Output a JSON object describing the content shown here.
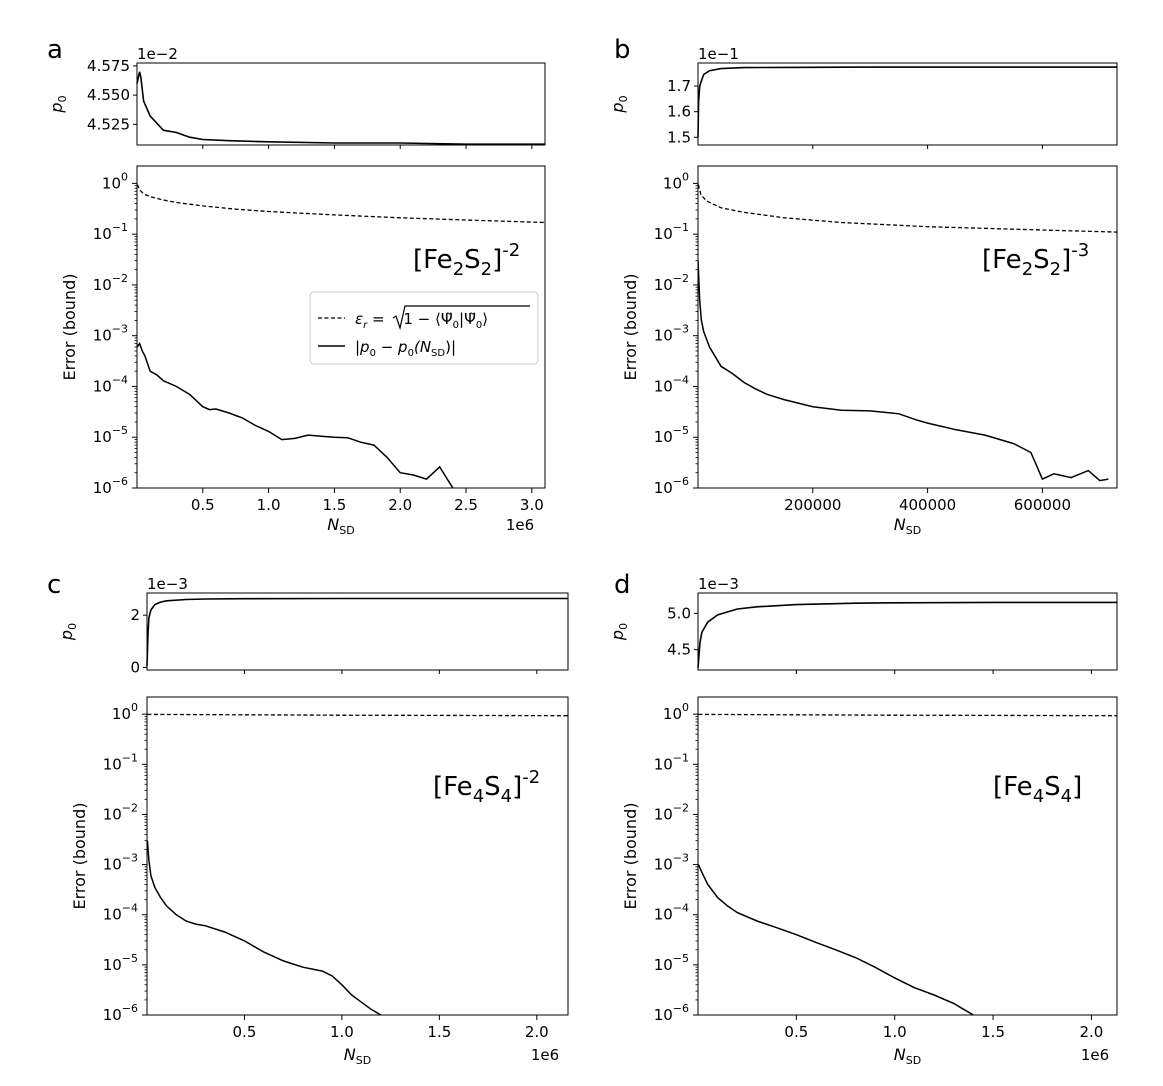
{
  "figure": {
    "panels": [
      {
        "letter": "a",
        "molecule": [
          "[Fe",
          "2",
          "S",
          "2",
          "]",
          "-2"
        ]
      },
      {
        "letter": "b",
        "molecule": [
          "[Fe",
          "2",
          "S",
          "2",
          "]",
          "-3"
        ]
      },
      {
        "letter": "c",
        "molecule": [
          "[Fe",
          "4",
          "S",
          "4",
          "]",
          "-2"
        ]
      },
      {
        "letter": "d",
        "molecule": [
          "[Fe",
          "4",
          "S",
          "4",
          "]",
          ""
        ]
      }
    ],
    "legend": {
      "dashed_label_parts": [
        "ε",
        "r",
        " = ",
        "1 − ⟨Ψ̃",
        "0",
        "|Ψ̃",
        "0",
        "⟩"
      ],
      "solid_label_parts": [
        "|p",
        "0",
        " − p",
        "0",
        "(N",
        "SD",
        ")|"
      ]
    }
  },
  "chart_data": [
    {
      "panel": "a",
      "type": "line",
      "top": {
        "ylabel": "p0",
        "offset_text": "1e−2",
        "yticks": [
          "4.525",
          "4.550",
          "4.575"
        ],
        "ytick_values": [
          4.525,
          4.55,
          4.575
        ],
        "ylim": [
          4.5073,
          4.5775
        ],
        "x": [
          0,
          0.02,
          0.03,
          0.05,
          0.1,
          0.2,
          0.3,
          0.4,
          0.5,
          0.7,
          1.0,
          1.5,
          2.0,
          2.5,
          3.1
        ],
        "values": [
          4.56,
          4.57,
          4.565,
          4.545,
          4.532,
          4.52,
          4.518,
          4.514,
          4.512,
          4.511,
          4.51,
          4.509,
          4.509,
          4.508,
          4.508
        ]
      },
      "bottom": {
        "ylabel": "Error (bound)",
        "xlabel": "N_SD",
        "x_offset_text": "1e6",
        "xticks": [
          "0.5",
          "1.0",
          "1.5",
          "2.0",
          "2.5",
          "3.0"
        ],
        "xtick_values": [
          0.5,
          1.0,
          1.5,
          2.0,
          2.5,
          3.0
        ],
        "xlim": [
          0,
          3.1
        ],
        "yscale": "log",
        "ylim": [
          1e-06,
          2.2
        ],
        "ytick_exponents": [
          0,
          -1,
          -2,
          -3,
          -4,
          -5,
          -6
        ],
        "series": [
          {
            "style": "dashed",
            "x": [
              0.002,
              0.02,
              0.05,
              0.1,
              0.2,
              0.3,
              0.5,
              0.75,
              1.0,
              1.5,
              2.0,
              2.5,
              3.1
            ],
            "values": [
              0.95,
              0.75,
              0.62,
              0.55,
              0.47,
              0.42,
              0.36,
              0.31,
              0.28,
              0.24,
              0.21,
              0.19,
              0.17
            ]
          },
          {
            "style": "solid",
            "x": [
              0.0,
              0.02,
              0.04,
              0.06,
              0.1,
              0.15,
              0.2,
              0.3,
              0.4,
              0.5,
              0.55,
              0.6,
              0.7,
              0.8,
              0.9,
              1.0,
              1.1,
              1.2,
              1.3,
              1.4,
              1.5,
              1.6,
              1.7,
              1.8,
              1.9,
              2.0,
              2.1,
              2.2,
              2.3,
              2.35,
              2.4
            ],
            "values": [
              0.0006,
              0.0007,
              0.0005,
              0.0004,
              0.0002,
              0.00017,
              0.00013,
              0.0001,
              7e-05,
              4e-05,
              3.5e-05,
              3.6e-05,
              3e-05,
              2.4e-05,
              1.7e-05,
              1.3e-05,
              9e-06,
              9.5e-06,
              1.1e-05,
              1.05e-05,
              1e-05,
              9.8e-06,
              8e-06,
              7e-06,
              4e-06,
              2e-06,
              1.8e-06,
              1.5e-06,
              2.6e-06,
              1.6e-06,
              1e-06
            ]
          }
        ]
      }
    },
    {
      "panel": "b",
      "type": "line",
      "top": {
        "ylabel": "p0",
        "offset_text": "1e−1",
        "yticks": [
          "1.5",
          "1.6",
          "1.7"
        ],
        "ytick_values": [
          1.5,
          1.6,
          1.7
        ],
        "ylim": [
          1.47,
          1.79
        ],
        "x": [
          0,
          1000,
          3000,
          6000,
          10000,
          20000,
          40000,
          80000,
          150000,
          300000,
          500000,
          730000
        ],
        "values": [
          1.5,
          1.64,
          1.7,
          1.72,
          1.745,
          1.76,
          1.768,
          1.772,
          1.773,
          1.774,
          1.774,
          1.774
        ]
      },
      "bottom": {
        "ylabel": "Error (bound)",
        "xlabel": "N_SD",
        "x_offset_text": "",
        "xticks": [
          "200000",
          "400000",
          "600000"
        ],
        "xtick_values": [
          200000,
          400000,
          600000
        ],
        "xlim": [
          0,
          730000
        ],
        "yscale": "log",
        "ylim": [
          1e-06,
          2.2
        ],
        "ytick_exponents": [
          0,
          -1,
          -2,
          -3,
          -4,
          -5,
          -6
        ],
        "series": [
          {
            "style": "dashed",
            "x": [
              500,
              5000,
              15000,
              40000,
              80000,
              150000,
              250000,
              400000,
              550000,
              730000
            ],
            "values": [
              0.95,
              0.6,
              0.45,
              0.33,
              0.27,
              0.21,
              0.17,
              0.14,
              0.125,
              0.11
            ]
          },
          {
            "style": "solid",
            "x": [
              0,
              3000,
              6000,
              10000,
              20000,
              40000,
              60000,
              80000,
              100000,
              120000,
              150000,
              200000,
              250000,
              300000,
              350000,
              380000,
              400000,
              450000,
              500000,
              550000,
              580000,
              600000,
              620000,
              650000,
              680000,
              700000,
              715000
            ],
            "values": [
              0.03,
              0.005,
              0.002,
              0.0012,
              0.0006,
              0.00025,
              0.00018,
              0.00012,
              9e-05,
              7e-05,
              5.5e-05,
              4e-05,
              3.4e-05,
              3.3e-05,
              2.9e-05,
              2.2e-05,
              1.9e-05,
              1.4e-05,
              1.1e-05,
              7.5e-06,
              5e-06,
              1.5e-06,
              1.9e-06,
              1.6e-06,
              2.2e-06,
              1.4e-06,
              1.5e-06
            ]
          }
        ]
      }
    },
    {
      "panel": "c",
      "type": "line",
      "top": {
        "ylabel": "p0",
        "offset_text": "1e−3",
        "yticks": [
          "0",
          "2"
        ],
        "ytick_values": [
          0,
          2
        ],
        "ylim": [
          -0.1,
          2.85
        ],
        "x": [
          0,
          0.005,
          0.01,
          0.02,
          0.04,
          0.07,
          0.1,
          0.2,
          0.3,
          0.5,
          1.0,
          1.5,
          2.16
        ],
        "values": [
          0.05,
          1.3,
          1.9,
          2.2,
          2.4,
          2.5,
          2.55,
          2.6,
          2.62,
          2.63,
          2.64,
          2.64,
          2.64
        ]
      },
      "bottom": {
        "ylabel": "Error (bound)",
        "xlabel": "N_SD",
        "x_offset_text": "1e6",
        "xticks": [
          "0.5",
          "1.0",
          "1.5",
          "2.0"
        ],
        "xtick_values": [
          0.5,
          1.0,
          1.5,
          2.0
        ],
        "xlim": [
          0,
          2.16
        ],
        "yscale": "log",
        "ylim": [
          1e-06,
          2.2
        ],
        "ytick_exponents": [
          0,
          -1,
          -2,
          -3,
          -4,
          -5,
          -6
        ],
        "series": [
          {
            "style": "dashed",
            "x": [
              0.002,
              0.5,
              1.0,
              1.5,
              2.16
            ],
            "values": [
              0.99,
              0.97,
              0.955,
              0.945,
              0.93
            ]
          },
          {
            "style": "solid",
            "x": [
              0.002,
              0.01,
              0.02,
              0.04,
              0.07,
              0.1,
              0.15,
              0.2,
              0.25,
              0.3,
              0.4,
              0.5,
              0.6,
              0.7,
              0.8,
              0.9,
              0.95,
              1.0,
              1.05,
              1.1,
              1.15,
              1.2
            ],
            "values": [
              0.003,
              0.0012,
              0.0006,
              0.00035,
              0.00022,
              0.00015,
              0.0001,
              7.5e-05,
              6.5e-05,
              6e-05,
              4.5e-05,
              3e-05,
              1.8e-05,
              1.2e-05,
              9e-06,
              7.5e-06,
              6e-06,
              4e-06,
              2.5e-06,
              1.8e-06,
              1.3e-06,
              1e-06
            ]
          }
        ]
      }
    },
    {
      "panel": "d",
      "type": "line",
      "top": {
        "ylabel": "p0",
        "offset_text": "1e−3",
        "yticks": [
          "4.5",
          "5.0"
        ],
        "ytick_values": [
          4.5,
          5.0
        ],
        "ylim": [
          4.22,
          5.28
        ],
        "x": [
          0,
          0.01,
          0.02,
          0.05,
          0.1,
          0.2,
          0.3,
          0.5,
          0.8,
          1.0,
          1.5,
          2.13
        ],
        "values": [
          4.25,
          4.6,
          4.74,
          4.88,
          4.98,
          5.06,
          5.09,
          5.12,
          5.14,
          5.145,
          5.15,
          5.15
        ]
      },
      "bottom": {
        "ylabel": "Error (bound)",
        "xlabel": "N_SD",
        "x_offset_text": "1e6",
        "xticks": [
          "0.5",
          "1.0",
          "1.5",
          "2.0"
        ],
        "xtick_values": [
          0.5,
          1.0,
          1.5,
          2.0
        ],
        "xlim": [
          0,
          2.13
        ],
        "yscale": "log",
        "ylim": [
          1e-06,
          2.2
        ],
        "ytick_exponents": [
          0,
          -1,
          -2,
          -3,
          -4,
          -5,
          -6
        ],
        "series": [
          {
            "style": "dashed",
            "x": [
              0.002,
              0.5,
              1.0,
              1.5,
              2.13
            ],
            "values": [
              0.99,
              0.97,
              0.955,
              0.945,
              0.93
            ]
          },
          {
            "style": "solid",
            "x": [
              0.002,
              0.02,
              0.05,
              0.1,
              0.15,
              0.2,
              0.3,
              0.4,
              0.5,
              0.6,
              0.7,
              0.8,
              0.9,
              1.0,
              1.1,
              1.2,
              1.3,
              1.35,
              1.4
            ],
            "values": [
              0.001,
              0.0007,
              0.0004,
              0.00022,
              0.00015,
              0.00011,
              7.5e-05,
              5.5e-05,
              4e-05,
              2.8e-05,
              2e-05,
              1.4e-05,
              9e-06,
              5.5e-06,
              3.5e-06,
              2.5e-06,
              1.7e-06,
              1.3e-06,
              1e-06
            ]
          }
        ]
      }
    }
  ]
}
